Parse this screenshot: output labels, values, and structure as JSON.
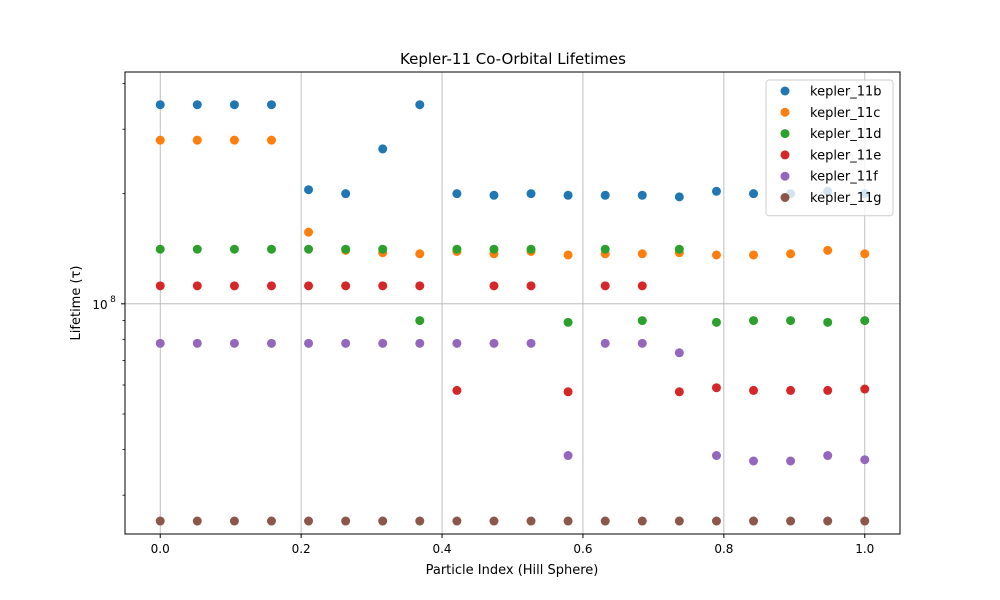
{
  "chart_data": {
    "type": "scatter",
    "title": "Kepler-11 Co-Orbital Lifetimes",
    "xlabel": "Particle Index (Hill Sphere)",
    "ylabel": "Lifetime (τ)",
    "yscale": "log",
    "xlim": [
      -0.05,
      1.05
    ],
    "ylim": [
      23500000,
      430000000
    ],
    "xticks": [
      0.0,
      0.2,
      0.4,
      0.6,
      0.8,
      1.0
    ],
    "xtick_labels": [
      "0.0",
      "0.2",
      "0.4",
      "0.6",
      "0.8",
      "1.0"
    ],
    "yticks_major": [
      100000000
    ],
    "ytick_major_labels": [
      {
        "base": "10",
        "exp": "8"
      }
    ],
    "yticks_minor": [
      30000000,
      40000000,
      50000000,
      60000000,
      70000000,
      80000000,
      90000000,
      200000000,
      300000000,
      400000000
    ],
    "grid": true,
    "legend_position": "top-right",
    "series": [
      {
        "name": "kepler_11b",
        "color": "#1f77b4",
        "x": [
          0.0,
          0.0526,
          0.1053,
          0.1579,
          0.2105,
          0.2632,
          0.3158,
          0.3684,
          0.4211,
          0.4737,
          0.5263,
          0.5789,
          0.6316,
          0.6842,
          0.7368,
          0.7895,
          0.8421,
          0.8947,
          0.9474,
          1.0
        ],
        "y": [
          350000000,
          350000000,
          350000000,
          350000000,
          205000000,
          200000000,
          265000000,
          350000000,
          200000000,
          198000000,
          200000000,
          198000000,
          198000000,
          198000000,
          196000000,
          203000000,
          200000000,
          200000000,
          203000000,
          200000000
        ]
      },
      {
        "name": "kepler_11c",
        "color": "#ff7f0e",
        "x": [
          0.0,
          0.0526,
          0.1053,
          0.1579,
          0.2105,
          0.2632,
          0.3158,
          0.3684,
          0.4211,
          0.4737,
          0.5263,
          0.5789,
          0.6316,
          0.6842,
          0.7368,
          0.7895,
          0.8421,
          0.8947,
          0.9474,
          1.0
        ],
        "y": [
          280000000,
          280000000,
          280000000,
          280000000,
          157000000,
          140000000,
          138000000,
          137000000,
          139000000,
          137000000,
          139000000,
          136000000,
          137000000,
          137000000,
          138000000,
          136000000,
          136000000,
          137000000,
          140000000,
          137000000
        ]
      },
      {
        "name": "kepler_11d",
        "color": "#2ca02c",
        "x": [
          0.0,
          0.0526,
          0.1053,
          0.1579,
          0.2105,
          0.2632,
          0.3158,
          0.3684,
          0.4211,
          0.4737,
          0.5263,
          0.5789,
          0.6316,
          0.6842,
          0.7368,
          0.7895,
          0.8421,
          0.8947,
          0.9474,
          1.0
        ],
        "y": [
          141000000,
          141000000,
          141000000,
          141000000,
          141000000,
          141000000,
          141000000,
          90000000,
          141000000,
          141000000,
          141000000,
          89000000,
          141000000,
          90000000,
          141000000,
          89000000,
          90000000,
          90000000,
          89000000,
          90000000
        ]
      },
      {
        "name": "kepler_11e",
        "color": "#d62728",
        "x": [
          0.0,
          0.0526,
          0.1053,
          0.1579,
          0.2105,
          0.2632,
          0.3158,
          0.3684,
          0.4211,
          0.4737,
          0.5263,
          0.5789,
          0.6316,
          0.6842,
          0.7368,
          0.7895,
          0.8421,
          0.8947,
          0.9474,
          1.0
        ],
        "y": [
          112000000,
          112000000,
          112000000,
          112000000,
          112000000,
          112000000,
          112000000,
          112000000,
          58000000,
          112000000,
          112000000,
          57500000,
          112000000,
          112000000,
          57500000,
          59000000,
          58000000,
          58000000,
          58000000,
          58500000
        ]
      },
      {
        "name": "kepler_11f",
        "color": "#9467bd",
        "x": [
          0.0,
          0.0526,
          0.1053,
          0.1579,
          0.2105,
          0.2632,
          0.3158,
          0.3684,
          0.4211,
          0.4737,
          0.5263,
          0.5789,
          0.6316,
          0.6842,
          0.7368,
          0.7895,
          0.8421,
          0.8947,
          0.9474,
          1.0
        ],
        "y": [
          78000000,
          78000000,
          78000000,
          78000000,
          78000000,
          78000000,
          78000000,
          78000000,
          78000000,
          78000000,
          78000000,
          38500000,
          78000000,
          78000000,
          73500000,
          38500000,
          37200000,
          37200000,
          38500000,
          37500000
        ]
      },
      {
        "name": "kepler_11g",
        "color": "#8c564b",
        "x": [
          0.0,
          0.0526,
          0.1053,
          0.1579,
          0.2105,
          0.2632,
          0.3158,
          0.3684,
          0.4211,
          0.4737,
          0.5263,
          0.5789,
          0.6316,
          0.6842,
          0.7368,
          0.7895,
          0.8421,
          0.8947,
          0.9474,
          1.0
        ],
        "y": [
          25500000,
          25500000,
          25500000,
          25500000,
          25500000,
          25500000,
          25500000,
          25500000,
          25500000,
          25500000,
          25500000,
          25500000,
          25500000,
          25500000,
          25500000,
          25500000,
          25500000,
          25500000,
          25500000,
          25500000
        ]
      }
    ]
  }
}
